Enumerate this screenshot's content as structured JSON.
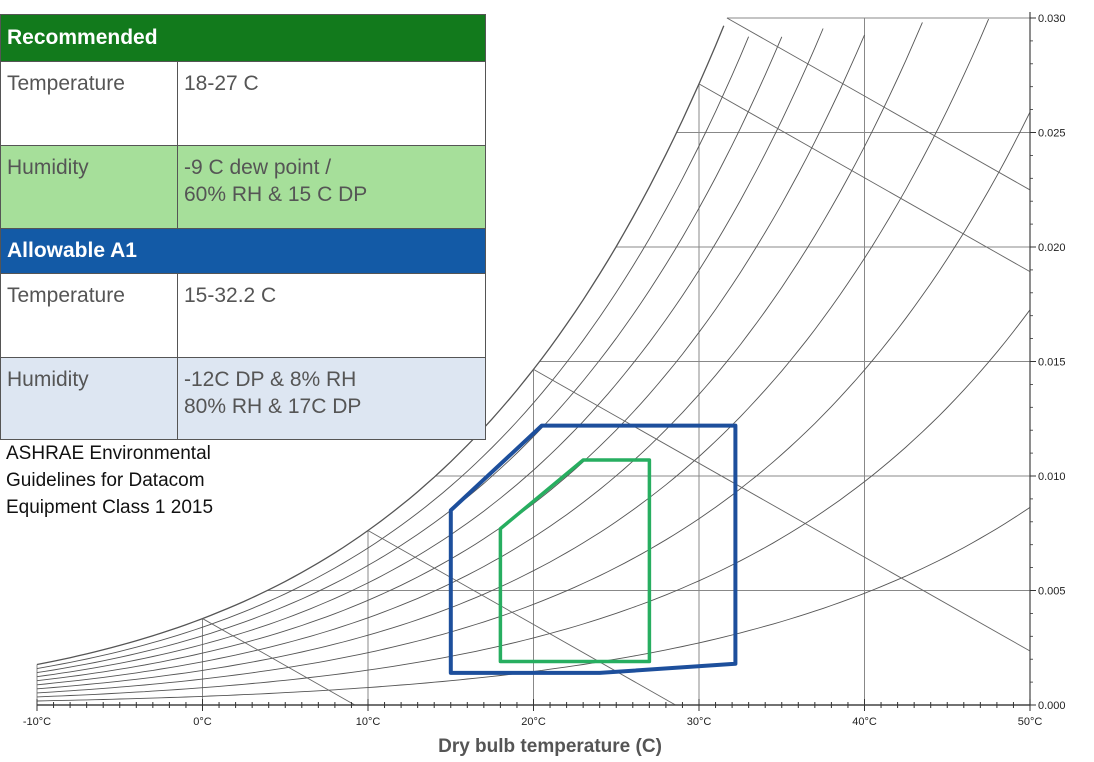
{
  "table": {
    "recommended_header": "Recommended",
    "recommended_rows": [
      {
        "label": "Temperature",
        "value_line1": "18-27 C",
        "value_line2": ""
      },
      {
        "label": "Humidity",
        "value_line1": "-9 C dew point /",
        "value_line2": "60% RH & 15 C DP"
      }
    ],
    "allowable_header": "Allowable A1",
    "allowable_rows": [
      {
        "label": "Temperature",
        "value_line1": "15-32.2 C",
        "value_line2": ""
      },
      {
        "label": "Humidity",
        "value_line1": "-12C DP & 8% RH",
        "value_line2": "80% RH & 17C DP"
      }
    ]
  },
  "note": {
    "line1": "ASHRAE  Environmental",
    "line2": "Guidelines for Datacom",
    "line3": "Equipment Class 1 2015"
  },
  "chart_data": {
    "type": "psychrometric",
    "xlabel": "Dry bulb temperature (C)",
    "ylabel": "",
    "xlim": [
      -10,
      50
    ],
    "ylim": [
      0,
      0.03
    ],
    "x_ticks": [
      "-10°C",
      "0°C",
      "10°C",
      "20°C",
      "30°C",
      "40°C",
      "50°C"
    ],
    "x_tick_values": [
      -10,
      0,
      10,
      20,
      30,
      40,
      50
    ],
    "y_ticks": [
      "0.000",
      "0.005",
      "0.010",
      "0.015",
      "0.020",
      "0.025",
      "0.030"
    ],
    "y_tick_values": [
      0,
      0.005,
      0.01,
      0.015,
      0.02,
      0.025,
      0.03
    ],
    "saturation_curve": [
      {
        "t": -10,
        "w": 0.0016
      },
      {
        "t": -5,
        "w": 0.0025
      },
      {
        "t": 0,
        "w": 0.0038
      },
      {
        "t": 5,
        "w": 0.0054
      },
      {
        "t": 10,
        "w": 0.0076
      },
      {
        "t": 15,
        "w": 0.0107
      },
      {
        "t": 20,
        "w": 0.0147
      },
      {
        "t": 25,
        "w": 0.0201
      },
      {
        "t": 30,
        "w": 0.0272
      },
      {
        "t": 32,
        "w": 0.0306
      }
    ],
    "rh_curves": [
      0.1,
      0.2,
      0.3,
      0.4,
      0.5,
      0.6,
      0.7,
      0.8,
      0.9
    ],
    "series": [
      {
        "name": "Allowable A1",
        "color": "#1d4f9c",
        "points": [
          {
            "t": 15,
            "w": 0.0085
          },
          {
            "t": 20.5,
            "w": 0.0122
          },
          {
            "t": 32.2,
            "w": 0.0122
          },
          {
            "t": 32.2,
            "w": 0.0018
          },
          {
            "t": 24,
            "w": 0.0014
          },
          {
            "t": 15,
            "w": 0.0014
          }
        ]
      },
      {
        "name": "Recommended",
        "color": "#27ae60",
        "points": [
          {
            "t": 18,
            "w": 0.0077
          },
          {
            "t": 23,
            "w": 0.0107
          },
          {
            "t": 27,
            "w": 0.0107
          },
          {
            "t": 27,
            "w": 0.0019
          },
          {
            "t": 18,
            "w": 0.0019
          }
        ]
      }
    ]
  }
}
